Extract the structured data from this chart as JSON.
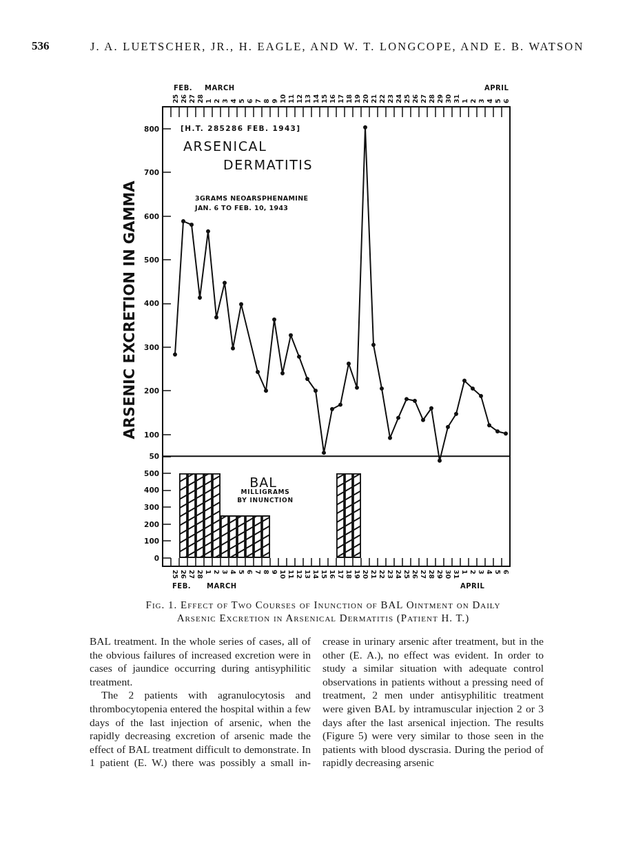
{
  "chart_data": [
    {
      "type": "line",
      "title": "ARSENICAL DERMATITIS",
      "subtitle": "3GRAMS NEOARSPHENAMINE JAN. 6 TO FEB. 10, 1943",
      "ylabel": "ARSENIC EXCRETION IN GAMMA",
      "categories": [
        null,
        "25",
        "26",
        "27",
        "28",
        "1",
        "2",
        "3",
        "4",
        "5",
        "6",
        "7",
        "8",
        "9",
        "10",
        "11",
        "12",
        "13",
        "14",
        "15",
        "16",
        "17",
        "18",
        "19",
        "20",
        "21",
        "22",
        "23",
        "24",
        "25",
        "26",
        "27",
        "28",
        "29",
        "30",
        "31",
        "1",
        "2",
        "3",
        "4",
        "5",
        "6"
      ],
      "values": [
        null,
        283,
        588,
        580,
        413,
        565,
        368,
        447,
        297,
        398,
        null,
        243,
        200,
        363,
        240,
        327,
        278,
        227,
        200,
        58,
        158,
        168,
        262,
        207,
        803,
        305,
        205,
        92,
        138,
        181,
        177,
        133,
        160,
        40,
        117,
        147,
        223,
        205,
        188,
        121,
        107,
        102
      ],
      "color": "#111111",
      "marker": "circle",
      "ylim": [
        30,
        850
      ],
      "yticks": [
        50,
        100,
        200,
        300,
        400,
        500,
        600,
        700,
        800
      ],
      "annotations": [
        "536",
        "J. A. LUETSCHER, JR., H. EAGLE, AND W. T. LONGCOPE, AND E. B. WATSON",
        "[H.T. 285286 FEB. 1943]",
        "FEB.",
        "MARCH",
        "APRIL"
      ]
    },
    {
      "type": "bar",
      "title": "BAL",
      "subtitle": "MILLIGRAMS\nBY INUNCTION",
      "categories": [
        null,
        "25",
        "26",
        "27",
        "28",
        "1",
        "2",
        "3",
        "4",
        "5",
        "6",
        "7",
        "8",
        "9",
        "10",
        "11",
        "12",
        "13",
        "14",
        "15",
        "16",
        "17",
        "18",
        "19",
        "20",
        "21",
        "22",
        "23",
        "24",
        "25",
        "26",
        "27",
        "28",
        "29",
        "30",
        "31",
        "1",
        "2",
        "3",
        "4",
        "5",
        "6"
      ],
      "values": [
        null,
        null,
        500,
        500,
        500,
        500,
        500,
        250,
        250,
        250,
        250,
        250,
        250,
        null,
        null,
        null,
        null,
        null,
        null,
        null,
        null,
        500,
        500,
        500,
        null,
        null,
        null,
        null,
        null,
        null,
        null,
        null,
        null,
        null,
        null,
        null,
        null,
        null,
        null,
        null,
        null,
        null
      ],
      "color": "#111111",
      "ylim": [
        -50,
        600
      ],
      "yticks": [
        0,
        100,
        200,
        300,
        400,
        500
      ],
      "annotations": [
        "FEB.",
        "MARCH",
        "APRIL",
        "Fig. 1. Effect of Two Courses of Inunction of BAL Ointment on Daily Arsenic Excretion in Arsenical Dermatitis (Patient H. T.)",
        "BAL treatment. In the whole series of cases, all of the obvious failures of increased excretion were in cases of jaundice occurring during antisyphilitic treatment.",
        "The 2 patients with agranulocytosis and thrombocytopenia entered the hospital within a few days of the last injection of arsenic, when the rapidly decreasing excretion of arsenic made the effect of BAL treatment difficult to demonstrate. In 1 patient (E. W.) there was possibly a small in-",
        "crease in urinary arsenic after treatment, but in the other (E. A.), no effect was evident. In order to study a similar situation with adequate control observations in patients without a pressing need of treatment, 2 men under antisyphilitic treatment were given BAL by intramuscular injection 2 or 3 days after the last arsenical injection. The results (Figure 5) were very similar to those seen in the patients with blood dyscrasia. During the period of rapidly decreasing arsenic"
      ]
    }
  ]
}
